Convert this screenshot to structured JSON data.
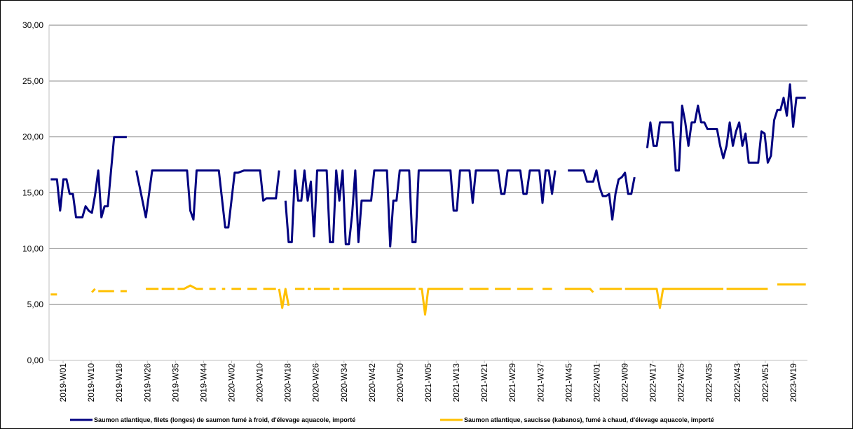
{
  "colors": {
    "series1": "#000080",
    "series2": "#FFC000",
    "grid": "#7f7f7f",
    "axis": "#bfbfbf",
    "border": "#000000"
  },
  "chart_data": {
    "type": "line",
    "title": "",
    "xlabel": "",
    "ylabel": "",
    "ylim": [
      0,
      30
    ],
    "yticks": [
      "0,00",
      "5,00",
      "10,00",
      "15,00",
      "20,00",
      "25,00",
      "30,00"
    ],
    "grid": true,
    "legend_position": "bottom",
    "x_tick_labels": [
      "2019-W01",
      "2019-W10",
      "2019-W18",
      "2019-W26",
      "2019-W35",
      "2019-W44",
      "2020-W02",
      "2020-W10",
      "2020-W18",
      "2020-W26",
      "2020-W34",
      "2020-W42",
      "2020-W50",
      "2021-W05",
      "2021-W13",
      "2021-W21",
      "2021-W29",
      "2021-W37",
      "2021-W45",
      "2022-W01",
      "2022-W09",
      "2022-W17",
      "2022-W25",
      "2022-W35",
      "2022-W43",
      "2022-W51",
      "2023-W19"
    ],
    "series": [
      {
        "name": "Saumon atlantique, filets (longes) de saumon fumé à froid, d'élevage aquacole, importé",
        "points": [
          [
            0,
            16.2
          ],
          [
            2,
            16.2
          ],
          [
            3,
            13.4
          ],
          [
            4,
            16.2
          ],
          [
            5,
            16.2
          ],
          [
            6,
            14.9
          ],
          [
            7,
            14.9
          ],
          [
            8,
            12.8
          ],
          [
            10,
            12.8
          ],
          [
            11,
            13.8
          ],
          [
            12,
            13.4
          ],
          [
            13,
            13.2
          ],
          [
            14,
            14.8
          ],
          [
            15,
            17.0
          ],
          [
            16,
            12.8
          ],
          [
            17,
            13.8
          ],
          [
            18,
            13.8
          ],
          [
            20,
            20.0
          ],
          [
            24,
            20.0
          ],
          null,
          [
            27,
            17.0
          ],
          [
            30,
            12.8
          ],
          [
            31,
            14.9
          ],
          [
            32,
            17.0
          ],
          [
            43,
            17.0
          ],
          [
            44,
            13.4
          ],
          [
            45,
            12.6
          ],
          [
            46,
            17.0
          ],
          [
            53,
            17.0
          ],
          [
            55,
            11.9
          ],
          [
            56,
            11.9
          ],
          [
            58,
            16.8
          ],
          [
            59,
            16.8
          ],
          [
            61,
            17.0
          ],
          [
            66,
            17.0
          ],
          [
            67,
            14.3
          ],
          [
            68,
            14.5
          ],
          [
            71,
            14.5
          ],
          [
            72,
            17.0
          ],
          null,
          [
            74,
            14.3
          ],
          [
            75,
            10.6
          ],
          [
            76,
            10.6
          ],
          [
            77,
            17.0
          ],
          [
            78,
            14.3
          ],
          [
            79,
            14.3
          ],
          [
            80,
            17.0
          ],
          [
            81,
            14.3
          ],
          [
            82,
            16.0
          ],
          [
            83,
            11.1
          ],
          [
            84,
            17.0
          ],
          [
            87,
            17.0
          ],
          [
            88,
            10.6
          ],
          [
            89,
            10.6
          ],
          [
            90,
            17.0
          ],
          [
            91,
            14.3
          ],
          [
            92,
            17.0
          ],
          [
            93,
            10.4
          ],
          [
            94,
            10.4
          ],
          [
            95,
            13.0
          ],
          [
            96,
            17.0
          ],
          [
            97,
            10.6
          ],
          [
            98,
            14.3
          ],
          [
            101,
            14.3
          ],
          [
            102,
            17.0
          ],
          [
            106,
            17.0
          ],
          [
            107,
            10.2
          ],
          [
            108,
            14.3
          ],
          [
            109,
            14.3
          ],
          [
            110,
            17.0
          ],
          [
            113,
            17.0
          ],
          [
            114,
            10.6
          ],
          [
            115,
            10.6
          ],
          [
            116,
            17.0
          ],
          [
            126,
            17.0
          ],
          [
            127,
            13.4
          ],
          [
            128,
            13.4
          ],
          [
            129,
            17.0
          ],
          [
            132,
            17.0
          ],
          [
            133,
            14.1
          ],
          [
            134,
            17.0
          ],
          [
            141,
            17.0
          ],
          [
            142,
            14.9
          ],
          [
            143,
            14.9
          ],
          [
            144,
            17.0
          ],
          [
            148,
            17.0
          ],
          [
            149,
            14.9
          ],
          [
            150,
            14.9
          ],
          [
            151,
            17.0
          ],
          [
            154,
            17.0
          ],
          [
            155,
            14.1
          ],
          [
            156,
            17.0
          ],
          [
            157,
            17.0
          ],
          [
            158,
            14.9
          ],
          [
            159,
            17.0
          ],
          null,
          [
            163,
            17.0
          ],
          [
            168,
            17.0
          ],
          [
            169,
            16.0
          ],
          [
            171,
            16.0
          ],
          [
            172,
            17.0
          ],
          [
            173,
            15.5
          ],
          [
            174,
            14.7
          ],
          [
            175,
            14.7
          ],
          [
            176,
            14.9
          ],
          [
            177,
            12.6
          ],
          [
            178,
            14.9
          ],
          [
            179,
            16.2
          ],
          [
            180,
            16.4
          ],
          [
            181,
            16.8
          ],
          [
            182,
            14.9
          ],
          [
            183,
            14.9
          ],
          [
            184,
            16.4
          ],
          null,
          [
            188,
            19.0
          ],
          [
            189,
            21.3
          ],
          [
            190,
            19.2
          ],
          [
            191,
            19.2
          ],
          [
            192,
            21.3
          ],
          [
            196,
            21.3
          ],
          [
            197,
            17.0
          ],
          [
            198,
            17.0
          ],
          [
            199,
            22.8
          ],
          [
            200,
            21.3
          ],
          [
            201,
            19.2
          ],
          [
            202,
            21.3
          ],
          [
            203,
            21.3
          ],
          [
            204,
            22.8
          ],
          [
            205,
            21.3
          ],
          [
            206,
            21.3
          ],
          [
            207,
            20.7
          ],
          [
            210,
            20.7
          ],
          [
            211,
            19.2
          ],
          [
            212,
            18.1
          ],
          [
            213,
            19.2
          ],
          [
            214,
            21.3
          ],
          [
            215,
            19.2
          ],
          [
            216,
            20.5
          ],
          [
            217,
            21.3
          ],
          [
            218,
            19.2
          ],
          [
            219,
            20.3
          ],
          [
            220,
            17.7
          ],
          [
            223,
            17.7
          ],
          [
            224,
            20.5
          ],
          [
            225,
            20.3
          ],
          [
            226,
            17.7
          ],
          [
            227,
            18.3
          ],
          [
            228,
            21.5
          ],
          [
            229,
            22.4
          ],
          [
            230,
            22.4
          ],
          [
            231,
            23.5
          ],
          [
            232,
            21.9
          ],
          [
            233,
            24.7
          ],
          [
            234,
            20.9
          ],
          [
            235,
            23.5
          ],
          [
            238,
            23.5
          ]
        ]
      },
      {
        "name": "Saumon atlantique, saucisse (kabanos), fumé à chaud, d'élevage aquacole, importé",
        "points": [
          [
            0,
            5.9
          ],
          [
            2,
            5.9
          ],
          null,
          [
            13,
            6.1
          ],
          [
            14,
            6.4
          ],
          null,
          [
            15,
            6.2
          ],
          [
            20,
            6.2
          ],
          null,
          [
            22,
            6.2
          ],
          [
            24,
            6.2
          ],
          null,
          [
            30,
            6.4
          ],
          [
            34,
            6.4
          ],
          null,
          [
            35,
            6.4
          ],
          [
            39,
            6.4
          ],
          null,
          [
            40,
            6.4
          ],
          [
            42,
            6.4
          ],
          [
            44,
            6.7
          ],
          [
            46,
            6.4
          ],
          [
            48,
            6.4
          ],
          null,
          [
            50,
            6.4
          ],
          [
            52,
            6.4
          ],
          null,
          [
            54,
            6.4
          ],
          [
            55,
            6.4
          ],
          null,
          [
            57,
            6.4
          ],
          [
            60,
            6.4
          ],
          null,
          [
            62,
            6.4
          ],
          [
            65,
            6.4
          ],
          null,
          [
            67,
            6.4
          ],
          [
            71,
            6.4
          ],
          null,
          [
            72,
            6.4
          ],
          [
            73,
            4.7
          ],
          [
            74,
            6.4
          ],
          [
            75,
            4.9
          ],
          null,
          [
            77,
            6.4
          ],
          [
            80,
            6.4
          ],
          null,
          [
            81,
            6.4
          ],
          [
            82,
            6.4
          ],
          null,
          [
            83,
            6.4
          ],
          [
            88,
            6.4
          ],
          null,
          [
            89,
            6.4
          ],
          [
            91,
            6.4
          ],
          null,
          [
            92,
            6.4
          ],
          [
            115,
            6.4
          ],
          null,
          [
            116,
            6.4
          ],
          [
            117,
            6.4
          ],
          [
            118,
            4.1
          ],
          [
            119,
            6.4
          ],
          [
            130,
            6.4
          ],
          null,
          [
            132,
            6.4
          ],
          [
            138,
            6.4
          ],
          null,
          [
            140,
            6.4
          ],
          [
            145,
            6.4
          ],
          null,
          [
            147,
            6.4
          ],
          [
            152,
            6.4
          ],
          null,
          [
            155,
            6.4
          ],
          [
            158,
            6.4
          ],
          null,
          [
            162,
            6.4
          ],
          [
            170,
            6.4
          ],
          [
            171,
            6.1
          ],
          null,
          [
            173,
            6.4
          ],
          [
            180,
            6.4
          ],
          null,
          [
            181,
            6.4
          ],
          [
            191,
            6.4
          ],
          [
            192,
            4.7
          ],
          [
            193,
            6.4
          ],
          [
            212,
            6.4
          ],
          null,
          [
            213,
            6.4
          ],
          [
            226,
            6.4
          ],
          null,
          [
            229,
            6.8
          ],
          [
            238,
            6.8
          ]
        ]
      }
    ]
  }
}
